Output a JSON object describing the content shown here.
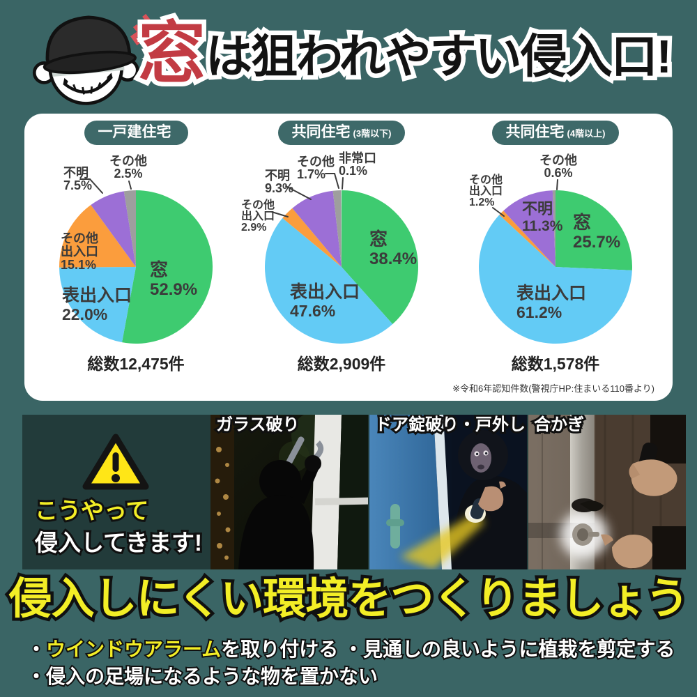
{
  "header": {
    "title_accent": "窓",
    "title_rest": "は狙われやすい侵入口!"
  },
  "panel": {
    "footnote": "※令和6年認知件数(警視庁HP:住まいる110番より)"
  },
  "chart_data": [
    {
      "type": "pie",
      "title": "一戸建住宅",
      "subtitle": "",
      "total_label": "総数12,475件",
      "slices": [
        {
          "name": "窓",
          "value": 52.9,
          "color": "#3ecb70"
        },
        {
          "name": "表出入口",
          "value": 22.0,
          "color": "#63cbf5"
        },
        {
          "name": "その他出入口",
          "value": 15.1,
          "color": "#fb9d3d"
        },
        {
          "name": "不明",
          "value": 7.5,
          "color": "#9c6fd6"
        },
        {
          "name": "その他",
          "value": 2.5,
          "color": "#9e9e9e"
        }
      ]
    },
    {
      "type": "pie",
      "title": "共同住宅",
      "subtitle": "(3階以下)",
      "total_label": "総数2,909件",
      "slices": [
        {
          "name": "窓",
          "value": 38.4,
          "color": "#3ecb70"
        },
        {
          "name": "表出入口",
          "value": 47.6,
          "color": "#63cbf5"
        },
        {
          "name": "その他出入口",
          "value": 2.9,
          "color": "#fb9d3d"
        },
        {
          "name": "不明",
          "value": 9.3,
          "color": "#9c6fd6"
        },
        {
          "name": "その他",
          "value": 1.7,
          "color": "#9e9e9e"
        },
        {
          "name": "非常口",
          "value": 0.1,
          "color": "#e8e8e8"
        }
      ]
    },
    {
      "type": "pie",
      "title": "共同住宅",
      "subtitle": "(4階以上)",
      "total_label": "総数1,578件",
      "slices": [
        {
          "name": "窓",
          "value": 25.7,
          "color": "#3ecb70"
        },
        {
          "name": "表出入口",
          "value": 61.2,
          "color": "#63cbf5"
        },
        {
          "name": "その他出入口",
          "value": 1.2,
          "color": "#fb9d3d"
        },
        {
          "name": "不明",
          "value": 11.3,
          "color": "#9c6fd6"
        },
        {
          "name": "その他",
          "value": 0.6,
          "color": "#9e9e9e"
        }
      ]
    }
  ],
  "methods": {
    "line1": "こうやって",
    "line2": "侵入してきます!",
    "photos": [
      {
        "label": "ガラス破り"
      },
      {
        "label": "ドア錠破り・戸外し"
      },
      {
        "label": "合かぎ"
      }
    ]
  },
  "footer": {
    "headline": "侵入しにくい環境をつくりましょう",
    "bullet1_marker": "・",
    "bullet1_highlight": "ウインドウアラーム",
    "bullet1_rest": "を取り付ける ",
    "bullet1_second": "・見通しの良いように植栽を剪定する",
    "bullet2": "・侵入の足場になるような物を置かない"
  },
  "colors": {
    "background": "#3a6565",
    "panel": "#ffffff",
    "strip": "#223b3a",
    "badge": "#3e6969",
    "title_accent_red": "#c23b43",
    "highlight_yellow": "#f3ee26",
    "warning_yellow": "#ffe617"
  }
}
